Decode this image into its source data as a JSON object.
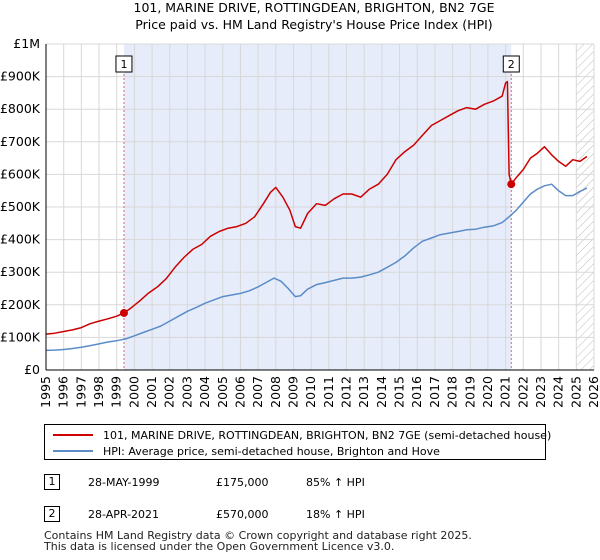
{
  "chart_data": {
    "type": "line",
    "title_line1": "101, MARINE DRIVE, ROTTINGDEAN, BRIGHTON, BN2 7GE",
    "title_line2": "Price paid vs. HM Land Registry's House Price Index (HPI)",
    "xlim": [
      1995,
      2026
    ],
    "ylim": [
      0,
      1000000
    ],
    "x_ticks": [
      "1995",
      "1996",
      "1997",
      "1998",
      "1999",
      "2000",
      "2001",
      "2002",
      "2003",
      "2004",
      "2005",
      "2006",
      "2007",
      "2008",
      "2009",
      "2010",
      "2011",
      "2012",
      "2013",
      "2014",
      "2015",
      "2016",
      "2017",
      "2018",
      "2019",
      "2020",
      "2021",
      "2022",
      "2023",
      "2024",
      "2025",
      "2026"
    ],
    "y_ticks": [
      {
        "value": 0,
        "label": "£0"
      },
      {
        "value": 100000,
        "label": "£100K"
      },
      {
        "value": 200000,
        "label": "£200K"
      },
      {
        "value": 300000,
        "label": "£300K"
      },
      {
        "value": 400000,
        "label": "£400K"
      },
      {
        "value": 500000,
        "label": "£500K"
      },
      {
        "value": 600000,
        "label": "£600K"
      },
      {
        "value": 700000,
        "label": "£700K"
      },
      {
        "value": 800000,
        "label": "£800K"
      },
      {
        "value": 900000,
        "label": "£900K"
      },
      {
        "value": 1000000,
        "label": "£1M"
      }
    ],
    "owned_period": [
      1999.41,
      2021.32
    ],
    "forecast_start": 2025.0,
    "series": [
      {
        "name": "101, MARINE DRIVE, ROTTINGDEAN, BRIGHTON, BN2 7GE (semi-detached house)",
        "color": "#cc0000",
        "x": [
          1995.0,
          1995.5,
          1996.0,
          1996.5,
          1997.0,
          1997.5,
          1998.0,
          1998.5,
          1999.0,
          1999.41,
          1999.8,
          2000.3,
          2000.8,
          2001.3,
          2001.8,
          2002.3,
          2002.8,
          2003.3,
          2003.8,
          2004.3,
          2004.8,
          2005.3,
          2005.8,
          2006.3,
          2006.8,
          2007.3,
          2007.7,
          2008.0,
          2008.4,
          2008.8,
          2009.1,
          2009.4,
          2009.8,
          2010.3,
          2010.8,
          2011.3,
          2011.8,
          2012.3,
          2012.8,
          2013.3,
          2013.8,
          2014.3,
          2014.8,
          2015.3,
          2015.8,
          2016.3,
          2016.8,
          2017.3,
          2017.8,
          2018.3,
          2018.8,
          2019.3,
          2019.8,
          2020.3,
          2020.8,
          2021.0,
          2021.1,
          2021.2,
          2021.32,
          2021.6,
          2022.0,
          2022.4,
          2022.8,
          2023.2,
          2023.6,
          2024.0,
          2024.4,
          2024.8,
          2025.2,
          2025.6
        ],
        "values": [
          110000,
          113000,
          118000,
          123000,
          130000,
          142000,
          150000,
          157000,
          165000,
          175000,
          190000,
          212000,
          236000,
          255000,
          280000,
          315000,
          345000,
          370000,
          385000,
          410000,
          425000,
          435000,
          440000,
          450000,
          470000,
          510000,
          545000,
          560000,
          530000,
          490000,
          440000,
          435000,
          480000,
          510000,
          505000,
          525000,
          540000,
          540000,
          530000,
          555000,
          570000,
          600000,
          645000,
          670000,
          690000,
          720000,
          750000,
          765000,
          780000,
          795000,
          805000,
          800000,
          815000,
          825000,
          840000,
          880000,
          885000,
          600000,
          570000,
          590000,
          615000,
          650000,
          665000,
          685000,
          660000,
          640000,
          625000,
          645000,
          640000,
          655000
        ]
      },
      {
        "name": "HPI: Average price, semi-detached house, Brighton and Hove",
        "color": "#5b8cc8",
        "x": [
          1995.0,
          1995.5,
          1996.0,
          1996.5,
          1997.0,
          1997.5,
          1998.0,
          1998.5,
          1999.0,
          1999.5,
          2000.0,
          2000.5,
          2001.0,
          2001.5,
          2002.0,
          2002.5,
          2003.0,
          2003.5,
          2004.0,
          2004.5,
          2005.0,
          2005.5,
          2006.0,
          2006.5,
          2007.0,
          2007.5,
          2007.9,
          2008.3,
          2008.7,
          2009.1,
          2009.4,
          2009.8,
          2010.3,
          2010.8,
          2011.3,
          2011.8,
          2012.3,
          2012.8,
          2013.3,
          2013.8,
          2014.3,
          2014.8,
          2015.3,
          2015.8,
          2016.3,
          2016.8,
          2017.3,
          2017.8,
          2018.3,
          2018.8,
          2019.3,
          2019.8,
          2020.3,
          2020.8,
          2021.2,
          2021.6,
          2022.0,
          2022.4,
          2022.8,
          2023.2,
          2023.6,
          2024.0,
          2024.4,
          2024.8,
          2025.2,
          2025.6
        ],
        "values": [
          60000,
          61000,
          63000,
          66000,
          70000,
          75000,
          80000,
          86000,
          90000,
          95000,
          105000,
          115000,
          125000,
          135000,
          150000,
          165000,
          180000,
          192000,
          205000,
          215000,
          225000,
          230000,
          235000,
          243000,
          255000,
          270000,
          282000,
          272000,
          250000,
          225000,
          228000,
          248000,
          262000,
          268000,
          275000,
          282000,
          282000,
          285000,
          292000,
          300000,
          315000,
          330000,
          350000,
          375000,
          395000,
          405000,
          415000,
          420000,
          425000,
          430000,
          432000,
          438000,
          442000,
          452000,
          470000,
          490000,
          515000,
          540000,
          555000,
          565000,
          570000,
          550000,
          535000,
          535000,
          548000,
          558000
        ]
      }
    ],
    "markers": [
      {
        "label": "1",
        "x": 1999.41,
        "value": 175000
      },
      {
        "label": "2",
        "x": 2021.32,
        "value": 570000
      }
    ]
  },
  "legend": {
    "property_label": "101, MARINE DRIVE, ROTTINGDEAN, BRIGHTON, BN2 7GE (semi-detached house)",
    "hpi_label": "HPI: Average price, semi-detached house, Brighton and Hove",
    "property_color": "#cc0000",
    "hpi_color": "#5b8cc8"
  },
  "sales": [
    {
      "id": "1",
      "date": "28-MAY-1999",
      "price": "£175,000",
      "hpi": "85% ↑ HPI"
    },
    {
      "id": "2",
      "date": "28-APR-2021",
      "price": "£570,000",
      "hpi": "18% ↑ HPI"
    }
  ],
  "footer": {
    "line1": "Contains HM Land Registry data © Crown copyright and database right 2025.",
    "line2": "This data is licensed under the Open Government Licence v3.0."
  }
}
